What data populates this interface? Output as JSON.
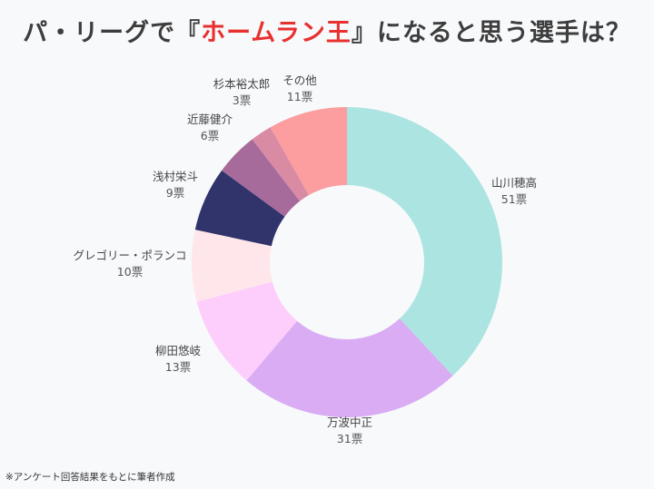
{
  "title": {
    "prefix": "パ・リーグで『",
    "highlight": "ホームラン王",
    "suffix": "』になると思う選手は？"
  },
  "colors": {
    "title_text": "#3d3d3d",
    "title_highlight": "#e8302f",
    "label_text": "#444444"
  },
  "chart_data": {
    "type": "pie",
    "donut": true,
    "title": "パ・リーグで『ホームラン王』になると思う選手は？",
    "unit": "票",
    "slices": [
      {
        "label": "山川穂高",
        "value": 51,
        "votes_label": "51票",
        "color": "#ace4e1"
      },
      {
        "label": "万波中正",
        "value": 31,
        "votes_label": "31票",
        "color": "#d9acf4"
      },
      {
        "label": "柳田悠岐",
        "value": 13,
        "votes_label": "13票",
        "color": "#fdcdfc"
      },
      {
        "label": "グレゴリー・ポランコ",
        "value": 10,
        "votes_label": "10票",
        "color": "#ffe6ea"
      },
      {
        "label": "浅村栄斗",
        "value": 9,
        "votes_label": "9票",
        "color": "#31336b"
      },
      {
        "label": "近藤健介",
        "value": 6,
        "votes_label": "6票",
        "color": "#a66b9b"
      },
      {
        "label": "杉本裕太郎",
        "value": 3,
        "votes_label": "3票",
        "color": "#d98ba4"
      },
      {
        "label": "その他",
        "value": 11,
        "votes_label": "11票",
        "color": "#fc9da0"
      }
    ]
  },
  "footnote": "※アンケート回答結果をもとに筆者作成"
}
